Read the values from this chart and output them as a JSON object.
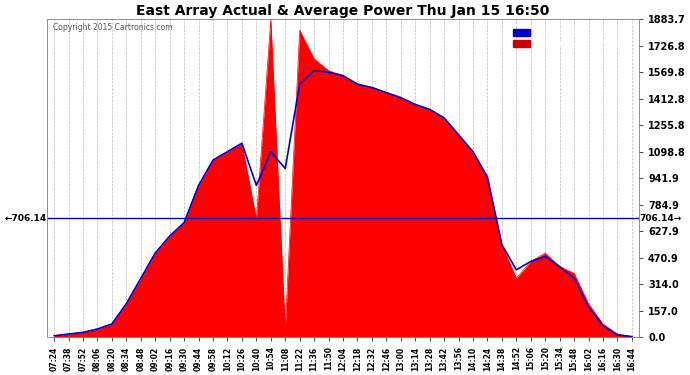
{
  "title": "East Array Actual & Average Power Thu Jan 15 16:50",
  "copyright": "Copyright 2015 Cartronics.com",
  "ylabel_right_ticks": [
    0.0,
    157.0,
    314.0,
    470.9,
    627.9,
    784.9,
    941.9,
    1098.8,
    1255.8,
    1412.8,
    1569.8,
    1726.8,
    1883.7
  ],
  "ymax": 1883.7,
  "ymin": 0.0,
  "hline_value": 706.14,
  "background_color": "#ffffff",
  "plot_bg_color": "#ffffff",
  "grid_color": "#aaaaaa",
  "fill_color": "#ff0000",
  "avg_line_color": "#0000cc",
  "legend_avg_bg": "#0000cc",
  "legend_east_bg": "#cc0000",
  "title_color": "#000000",
  "tick_color": "#000000",
  "hline_color": "#0000cc",
  "xtick_labels": [
    "07:24",
    "07:38",
    "07:52",
    "08:06",
    "08:20",
    "08:34",
    "08:48",
    "09:02",
    "09:16",
    "09:30",
    "09:44",
    "09:58",
    "10:12",
    "10:26",
    "10:40",
    "10:54",
    "11:08",
    "11:22",
    "11:36",
    "11:50",
    "12:04",
    "12:18",
    "12:32",
    "12:46",
    "13:00",
    "13:14",
    "13:28",
    "13:42",
    "13:56",
    "14:10",
    "14:24",
    "14:38",
    "14:52",
    "15:06",
    "15:20",
    "15:34",
    "15:48",
    "16:02",
    "16:16",
    "16:30",
    "16:44"
  ],
  "east_values": [
    10,
    20,
    30,
    50,
    80,
    200,
    350,
    500,
    600,
    680,
    900,
    1050,
    1100,
    1150,
    700,
    1883,
    50,
    1820,
    1650,
    1580,
    1550,
    1500,
    1480,
    1450,
    1420,
    1380,
    1350,
    1300,
    1200,
    1100,
    950,
    550,
    350,
    450,
    500,
    420,
    380,
    200,
    80,
    20,
    5
  ],
  "avg_values": [
    10,
    20,
    30,
    50,
    80,
    200,
    350,
    500,
    600,
    680,
    900,
    1050,
    1100,
    1150,
    900,
    1100,
    1000,
    1500,
    1580,
    1570,
    1550,
    1500,
    1480,
    1450,
    1420,
    1380,
    1350,
    1300,
    1200,
    1100,
    950,
    550,
    400,
    450,
    480,
    420,
    350,
    180,
    70,
    15,
    5
  ]
}
